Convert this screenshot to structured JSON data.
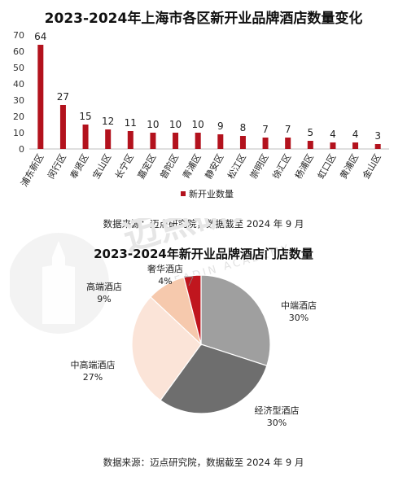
{
  "watermark": {
    "brand_text": "迈点研究院",
    "latin_text": "MEADIN ACADEMY"
  },
  "charts": {
    "bar": {
      "title": "2023-2024年上海市各区新开业品牌酒店数量变化",
      "source": "数据来源：迈点研究院，数据截至 2024 年 9 月"
    },
    "pie": {
      "title": "2023-2024年新开业品牌酒店门店数量",
      "source": "数据来源：迈点研究院，数据截至 2024 年 9 月"
    }
  },
  "chart_data": [
    {
      "type": "bar",
      "title": "2023-2024年上海市各区新开业品牌酒店数量变化",
      "categories": [
        "浦东新区",
        "闵行区",
        "奉贤区",
        "宝山区",
        "长宁区",
        "嘉定区",
        "普陀区",
        "青浦区",
        "静安区",
        "松江区",
        "崇明区",
        "徐汇区",
        "杨浦区",
        "虹口区",
        "黄浦区",
        "金山区"
      ],
      "series": [
        {
          "name": "新开业数量",
          "values": [
            64,
            27,
            15,
            12,
            11,
            10,
            10,
            10,
            9,
            8,
            7,
            7,
            5,
            4,
            4,
            3
          ]
        }
      ],
      "ylim": [
        0,
        70
      ],
      "yticks": [
        0,
        10,
        20,
        30,
        40,
        50,
        60,
        70
      ],
      "data_labels": true,
      "legend": "bottom",
      "grid": false,
      "colors": {
        "bar": "#b3121d"
      }
    },
    {
      "type": "pie",
      "title": "2023-2024年新开业品牌酒店门店数量",
      "slices": [
        {
          "label": "中端酒店",
          "value": 30,
          "display": "30%",
          "color": "#9f9f9f"
        },
        {
          "label": "经济型酒店",
          "value": 30,
          "display": "30%",
          "color": "#6e6e6e"
        },
        {
          "label": "中高端酒店",
          "value": 27,
          "display": "27%",
          "color": "#fbe4d8"
        },
        {
          "label": "高端酒店",
          "value": 9,
          "display": "9%",
          "color": "#f6c9ad"
        },
        {
          "label": "奢华酒店",
          "value": 4,
          "display": "4%",
          "color": "#c0161e"
        }
      ],
      "start_angle_deg": 0,
      "direction": "clockwise"
    }
  ]
}
